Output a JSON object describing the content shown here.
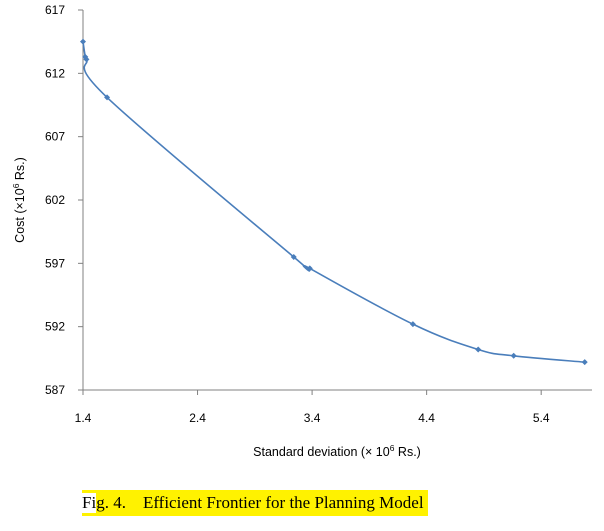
{
  "chart_data": {
    "type": "line",
    "xlabel_main": "Standard deviation (× 10",
    "xlabel_sup": "6",
    "xlabel_tail": " Rs.)",
    "ylabel_main": "Cost (×10",
    "ylabel_sup": "6",
    "ylabel_tail": " Rs.)",
    "xlim": [
      1.4,
      5.8
    ],
    "ylim": [
      587,
      617
    ],
    "xticks": [
      "1.4",
      "2.4",
      "3.4",
      "4.4",
      "5.4"
    ],
    "yticks": [
      "617",
      "612",
      "607",
      "602",
      "597",
      "592",
      "587"
    ],
    "grid": false,
    "line_color": "#4a7ebb",
    "marker_color": "#4a7ebb",
    "series": [
      {
        "x": [
          1.4,
          1.42,
          1.43,
          1.61,
          3.24,
          3.38,
          4.28,
          4.85,
          5.16,
          5.78
        ],
        "y": [
          614.5,
          613.3,
          613.1,
          610.1,
          597.5,
          596.6,
          592.2,
          590.2,
          589.7,
          589.2
        ]
      }
    ]
  },
  "caption": {
    "prefix": "Fi",
    "text": "g. 4.    Efficient Frontier for the Planning Model"
  }
}
